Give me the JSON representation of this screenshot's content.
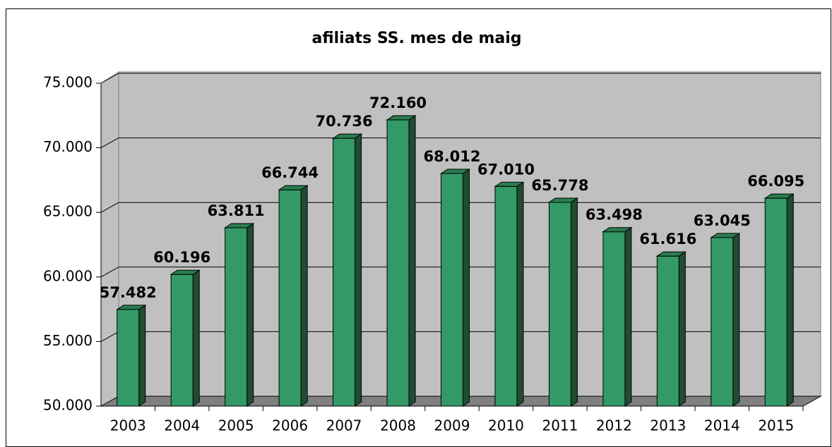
{
  "chart_data": {
    "type": "bar3d",
    "title": "afiliats SS. mes de maig",
    "categories": [
      "2003",
      "2004",
      "2005",
      "2006",
      "2007",
      "2008",
      "2009",
      "2010",
      "2011",
      "2012",
      "2013",
      "2014",
      "2015"
    ],
    "values": [
      57482,
      60196,
      63811,
      66744,
      70736,
      72160,
      68012,
      67010,
      65778,
      63498,
      61616,
      63045,
      66095
    ],
    "value_labels": [
      "57.482",
      "60.196",
      "63.811",
      "66.744",
      "70.736",
      "72.160",
      "68.012",
      "67.010",
      "65.778",
      "63.498",
      "61.616",
      "63.045",
      "66.095"
    ],
    "color": "#339966",
    "ylim": [
      50000,
      75000
    ],
    "yticks": [
      {
        "value": 50000,
        "label": "50.000"
      },
      {
        "value": 55000,
        "label": "55.000"
      },
      {
        "value": 60000,
        "label": "60.000"
      },
      {
        "value": 65000,
        "label": "65.000"
      },
      {
        "value": 70000,
        "label": "70.000"
      },
      {
        "value": 75000,
        "label": "75.000"
      }
    ],
    "grid": true
  }
}
